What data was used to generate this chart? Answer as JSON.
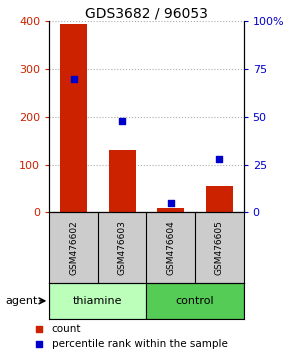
{
  "title": "GDS3682 / 96053",
  "samples": [
    "GSM476602",
    "GSM476603",
    "GSM476604",
    "GSM476605"
  ],
  "counts": [
    395,
    130,
    10,
    55
  ],
  "percentiles": [
    70,
    48,
    5,
    28
  ],
  "groups": [
    "thiamine",
    "thiamine",
    "control",
    "control"
  ],
  "bar_color": "#cc2200",
  "dot_color": "#0000cc",
  "ylim_left": [
    0,
    400
  ],
  "ylim_right": [
    0,
    100
  ],
  "yticks_left": [
    0,
    100,
    200,
    300,
    400
  ],
  "yticks_right": [
    0,
    25,
    50,
    75,
    100
  ],
  "yticklabels_right": [
    "0",
    "25",
    "50",
    "75",
    "100%"
  ],
  "left_tick_color": "#cc2200",
  "right_tick_color": "#0000cc",
  "grid_color": "#aaaaaa",
  "legend_items": [
    "count",
    "percentile rank within the sample"
  ],
  "legend_colors": [
    "#cc2200",
    "#0000cc"
  ],
  "agent_label": "agent",
  "label_area_bg": "#cccccc",
  "thiamine_color": "#bbffbb",
  "control_color": "#55cc55"
}
